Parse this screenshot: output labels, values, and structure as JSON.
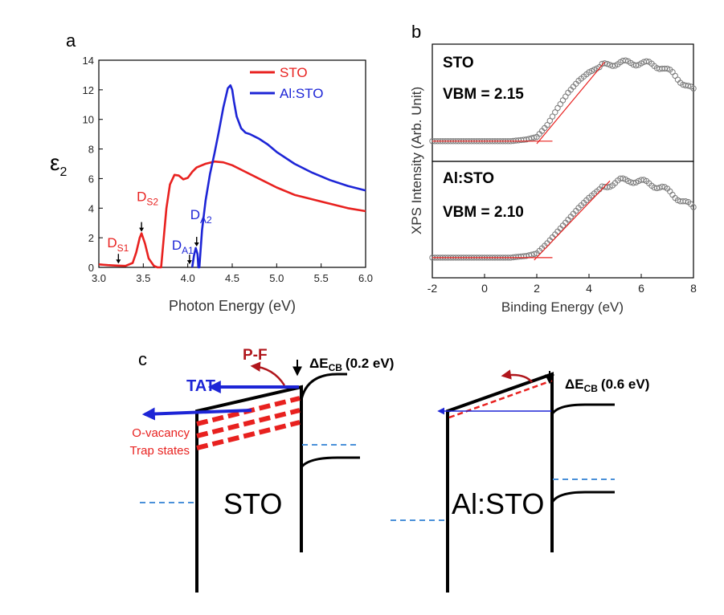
{
  "panel_labels": {
    "a": "a",
    "b": "b",
    "c": "c"
  },
  "colors": {
    "sto": "#e8211f",
    "alsto": "#1d25d6",
    "band": "#000000",
    "level": "#4a90d9",
    "pf": "#b0161c",
    "fit": "#e8211f",
    "marker": "#7a7a7a"
  },
  "chart_data": [
    {
      "id": "a",
      "type": "line",
      "xlabel": "Photon Energy (eV)",
      "ylabel": "ε",
      "ylabel_sub": "2",
      "xlim": [
        3.0,
        6.0
      ],
      "ylim": [
        0,
        14
      ],
      "xticks": [
        "3.0",
        "3.5",
        "4.0",
        "4.5",
        "5.0",
        "5.5",
        "6.0"
      ],
      "yticks": [
        "0",
        "2",
        "4",
        "6",
        "8",
        "10",
        "12",
        "14"
      ],
      "legend": {
        "placement": "top-right",
        "entries": [
          "STO",
          "Al:STO"
        ]
      },
      "series": [
        {
          "name": "STO",
          "color": "#e8211f",
          "x": [
            3.0,
            3.1,
            3.2,
            3.3,
            3.38,
            3.42,
            3.46,
            3.48,
            3.52,
            3.56,
            3.62,
            3.66,
            3.7,
            3.73,
            3.76,
            3.8,
            3.85,
            3.9,
            3.95,
            4.0,
            4.05,
            4.1,
            4.2,
            4.3,
            4.4,
            4.5,
            4.6,
            4.8,
            5.0,
            5.2,
            5.4,
            5.6,
            5.8,
            6.0
          ],
          "y": [
            0.2,
            0.15,
            0.12,
            0.1,
            0.3,
            1.0,
            2.0,
            2.3,
            1.6,
            0.6,
            0.1,
            0.0,
            0.0,
            2.0,
            4.0,
            5.6,
            6.25,
            6.2,
            5.95,
            6.05,
            6.45,
            6.75,
            7.0,
            7.15,
            7.1,
            6.9,
            6.6,
            6.0,
            5.4,
            4.9,
            4.6,
            4.3,
            4.0,
            3.8
          ]
        },
        {
          "name": "Al:STO",
          "color": "#1d25d6",
          "x": [
            4.05,
            4.07,
            4.09,
            4.11,
            4.12,
            4.13,
            4.16,
            4.2,
            4.25,
            4.3,
            4.35,
            4.4,
            4.45,
            4.48,
            4.5,
            4.52,
            4.55,
            4.6,
            4.65,
            4.7,
            4.8,
            4.9,
            5.0,
            5.2,
            5.4,
            5.6,
            5.8,
            6.0
          ],
          "y": [
            0.0,
            0.8,
            1.3,
            0.9,
            0.0,
            0.0,
            2.5,
            4.5,
            6.3,
            7.7,
            9.2,
            10.8,
            12.1,
            12.3,
            12.0,
            11.2,
            10.2,
            9.4,
            9.1,
            9.0,
            8.7,
            8.3,
            7.8,
            7.0,
            6.4,
            5.9,
            5.5,
            5.2
          ]
        }
      ],
      "annotations": [
        {
          "base": "D",
          "sub": "S1",
          "color": "#e8211f",
          "x": 3.22,
          "y": 0.15
        },
        {
          "base": "D",
          "sub": "S2",
          "color": "#e8211f",
          "x": 3.48,
          "y": 2.3
        },
        {
          "base": "D",
          "sub": "A1",
          "color": "#1d25d6",
          "x": 4.02,
          "y": 0.1
        },
        {
          "base": "D",
          "sub": "A2",
          "color": "#1d25d6",
          "x": 4.1,
          "y": 1.3
        }
      ]
    },
    {
      "id": "b",
      "type": "scatter",
      "xlabel": "Binding Energy (eV)",
      "ylabel": "XPS Intensity (Arb. Unit)",
      "xlim": [
        -2,
        8
      ],
      "xticks": [
        "-2",
        "0",
        "2",
        "4",
        "6",
        "8"
      ],
      "panels": [
        {
          "name": "STO",
          "vbm_label": "VBM = 2.15",
          "vbm": 2.15,
          "x": [
            -2.0,
            -1.0,
            0.0,
            1.0,
            1.6,
            2.0,
            2.4,
            2.8,
            3.2,
            3.6,
            4.0,
            4.4,
            4.8,
            5.2,
            5.6,
            6.0,
            6.4,
            6.8,
            7.2,
            7.6,
            8.0
          ],
          "y": [
            0.03,
            0.03,
            0.03,
            0.03,
            0.05,
            0.08,
            0.22,
            0.42,
            0.6,
            0.74,
            0.84,
            0.9,
            0.94,
            0.95,
            0.95,
            0.95,
            0.93,
            0.9,
            0.82,
            0.72,
            0.62
          ],
          "fit": {
            "slope": [
              2.0,
              4.6
            ],
            "baseline": [
              -2.0,
              2.6
            ]
          }
        },
        {
          "name": "Al:STO",
          "vbm_label": "VBM = 2.10",
          "vbm": 2.1,
          "x": [
            -2.0,
            -1.0,
            0.0,
            1.0,
            1.6,
            2.0,
            2.4,
            2.8,
            3.2,
            3.6,
            4.0,
            4.4,
            4.8,
            5.2,
            5.6,
            6.0,
            6.4,
            6.8,
            7.2,
            7.6,
            8.0
          ],
          "y": [
            0.03,
            0.03,
            0.03,
            0.03,
            0.05,
            0.08,
            0.2,
            0.34,
            0.48,
            0.62,
            0.74,
            0.84,
            0.9,
            0.94,
            0.95,
            0.93,
            0.9,
            0.86,
            0.78,
            0.7,
            0.62
          ],
          "fit": {
            "slope": [
              1.9,
              4.8
            ],
            "baseline": [
              -2.0,
              2.6
            ]
          }
        }
      ]
    }
  ],
  "diagram_c": {
    "left": {
      "material": "STO",
      "delta_base": "ΔE",
      "delta_sub": "CB",
      "delta_value": "(0.2 eV)",
      "tat": "TAT",
      "pf": "P-F",
      "trap_line1": "O-vacancy",
      "trap_line2": "Trap states"
    },
    "right": {
      "material": "Al:STO",
      "delta_base": "ΔE",
      "delta_sub": "CB",
      "delta_value": "(0.6 eV)"
    }
  }
}
